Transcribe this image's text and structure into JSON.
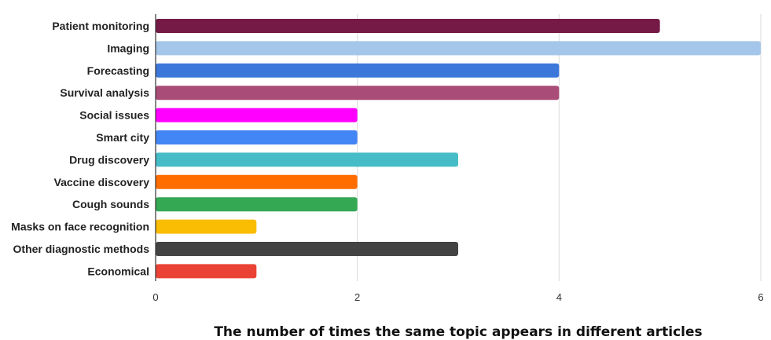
{
  "chart_data": {
    "type": "bar",
    "orientation": "horizontal",
    "categories": [
      "Patient monitoring",
      "Imaging",
      "Forecasting",
      "Survival analysis",
      "Social issues",
      "Smart city",
      "Drug discovery",
      "Vaccine discovery",
      "Cough sounds",
      "Masks on face recognition",
      "Other diagnostic methods",
      "Economical"
    ],
    "values": [
      5,
      6,
      4,
      4,
      2,
      2,
      3,
      2,
      2,
      1,
      3,
      1
    ],
    "colors": [
      "#751a47",
      "#a4c6ea",
      "#3b78d9",
      "#a94c78",
      "#ff00ff",
      "#4285f4",
      "#46bdc6",
      "#ff6d01",
      "#34a853",
      "#fbbc04",
      "#434343",
      "#ea4335"
    ],
    "xticks": [
      "0",
      "2",
      "4",
      "6"
    ],
    "xlim": [
      0,
      6
    ],
    "xlabel": "The number of times the same topic appears in different articles",
    "ylabel": "",
    "title": "",
    "grid": true,
    "legend": "none"
  }
}
